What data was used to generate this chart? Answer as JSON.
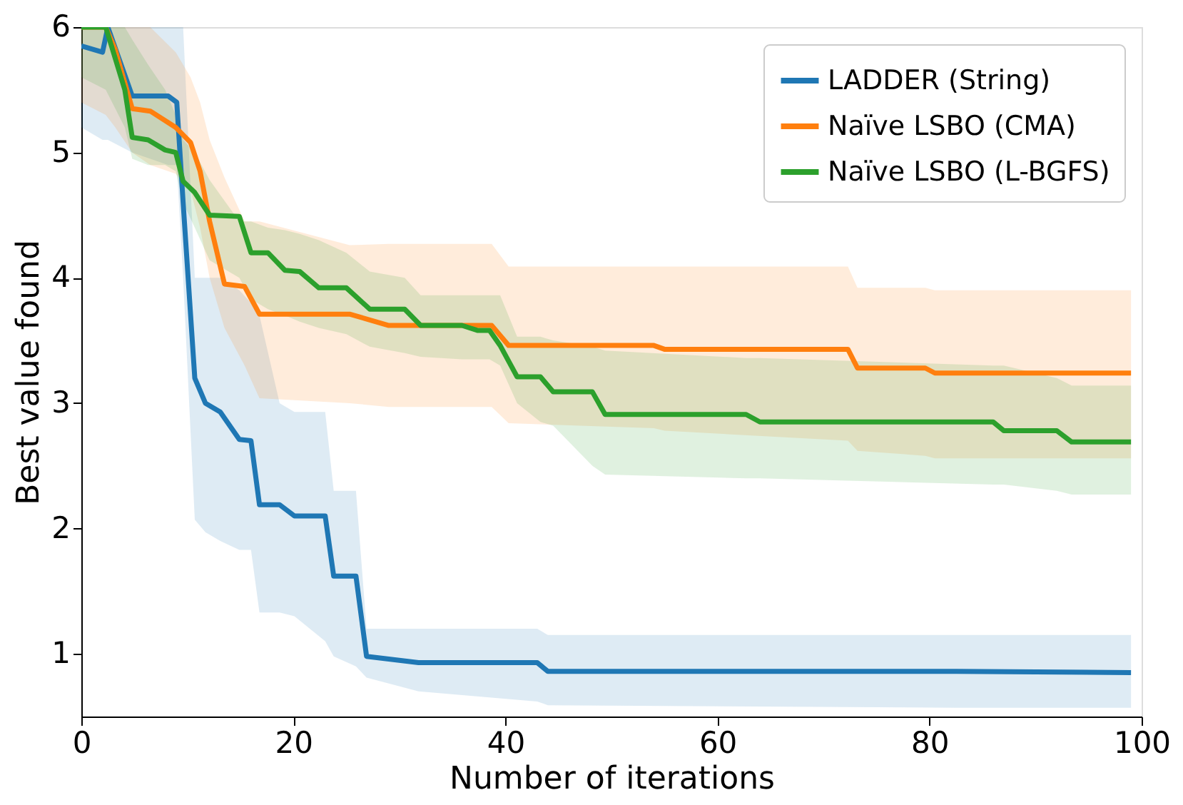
{
  "chart_data": {
    "type": "line",
    "xlabel": "Number of iterations",
    "ylabel": "Best value found",
    "xlim": [
      0,
      100
    ],
    "ylim": [
      0.5,
      6
    ],
    "xticks": [
      0,
      20,
      40,
      60,
      80,
      100
    ],
    "yticks": [
      1,
      2,
      3,
      4,
      5,
      6
    ],
    "grid": false,
    "legend": "top right",
    "marker": "none",
    "line_style": "solid",
    "series": [
      {
        "name": "LADDER (String)",
        "color": "#1f77b4",
        "x": [
          0,
          2,
          2.5,
          4.8,
          8.2,
          9,
          9.6,
          10.7,
          11.7,
          13.1,
          14.9,
          16,
          16.8,
          18.7,
          20.1,
          23,
          23.8,
          25.9,
          26.9,
          31.8,
          43,
          44,
          82.5,
          99
        ],
        "values": [
          5.85,
          5.8,
          6.0,
          5.45,
          5.45,
          5.4,
          4.6,
          3.2,
          3.0,
          2.93,
          2.71,
          2.7,
          2.19,
          2.19,
          2.1,
          2.1,
          1.62,
          1.62,
          0.98,
          0.93,
          0.93,
          0.86,
          0.86,
          0.85
        ],
        "upper": [
          6,
          6,
          6,
          6,
          6,
          6,
          6,
          4.0,
          4.0,
          4.0,
          3.9,
          3.8,
          3.7,
          3.0,
          2.93,
          2.93,
          2.3,
          2.3,
          1.2,
          1.2,
          1.2,
          1.15,
          1.15,
          1.15
        ],
        "lower": [
          5.2,
          5.1,
          5.1,
          5.0,
          4.9,
          4.9,
          4.0,
          2.07,
          1.97,
          1.9,
          1.83,
          1.83,
          1.33,
          1.33,
          1.3,
          1.1,
          0.98,
          0.9,
          0.81,
          0.7,
          0.62,
          0.59,
          0.57,
          0.57
        ]
      },
      {
        "name": "Naïve LSBO (CMA)",
        "color": "#ff7f0e",
        "x": [
          0,
          2.3,
          3.2,
          4.8,
          6.5,
          8.9,
          10.3,
          11.2,
          12.1,
          13.5,
          15.4,
          16.8,
          25.3,
          29,
          38.7,
          40.3,
          54,
          55,
          72.3,
          73.2,
          79.6,
          80.5,
          99
        ],
        "values": [
          6.0,
          6.0,
          5.82,
          5.35,
          5.33,
          5.2,
          5.08,
          4.85,
          4.45,
          3.95,
          3.93,
          3.71,
          3.71,
          3.62,
          3.62,
          3.46,
          3.46,
          3.43,
          3.43,
          3.28,
          3.28,
          3.24,
          3.24
        ],
        "upper": [
          6,
          6,
          6,
          6,
          6,
          5.8,
          5.6,
          5.4,
          5.1,
          4.8,
          4.45,
          4.45,
          4.26,
          4.27,
          4.27,
          4.09,
          4.09,
          4.09,
          4.09,
          3.92,
          3.92,
          3.9,
          3.9
        ],
        "lower": [
          5.4,
          5.3,
          5.2,
          5.0,
          4.9,
          4.83,
          4.7,
          4.4,
          4.0,
          3.6,
          3.3,
          3.04,
          3.0,
          2.97,
          2.97,
          2.84,
          2.8,
          2.78,
          2.7,
          2.62,
          2.58,
          2.56,
          2.56
        ]
      },
      {
        "name": "Naïve LSBO (L-BGFS)",
        "color": "#2ca02c",
        "x": [
          0,
          2.3,
          4.1,
          4.8,
          6.3,
          7.9,
          8.9,
          9.6,
          10.7,
          12.1,
          14.9,
          16,
          17.6,
          19.2,
          20.6,
          22.4,
          25,
          27.2,
          30.5,
          32,
          35.9,
          37.4,
          38.5,
          39.5,
          41.1,
          43.3,
          44.5,
          48.2,
          49.4,
          62.7,
          64,
          86,
          87,
          92,
          93.4,
          99
        ],
        "values": [
          6,
          6,
          5.5,
          5.12,
          5.1,
          5.02,
          5.0,
          4.77,
          4.68,
          4.5,
          4.49,
          4.2,
          4.2,
          4.06,
          4.05,
          3.92,
          3.92,
          3.75,
          3.75,
          3.62,
          3.62,
          3.58,
          3.58,
          3.46,
          3.21,
          3.21,
          3.09,
          3.09,
          2.91,
          2.91,
          2.85,
          2.85,
          2.78,
          2.78,
          2.69,
          2.69
        ],
        "upper": [
          6,
          6,
          6,
          5.9,
          5.7,
          5.5,
          5.3,
          5.1,
          5.0,
          4.78,
          4.45,
          4.45,
          4.4,
          4.38,
          4.35,
          4.3,
          4.2,
          4.05,
          4.0,
          3.86,
          3.86,
          3.86,
          3.86,
          3.86,
          3.53,
          3.53,
          3.5,
          3.45,
          3.42,
          3.36,
          3.36,
          3.3,
          3.3,
          3.2,
          3.14,
          3.14
        ],
        "lower": [
          5.6,
          5.5,
          5.2,
          4.95,
          4.9,
          4.9,
          4.85,
          4.6,
          4.4,
          4.14,
          4.0,
          3.83,
          3.75,
          3.7,
          3.65,
          3.6,
          3.55,
          3.45,
          3.4,
          3.37,
          3.35,
          3.35,
          3.35,
          3.3,
          3.0,
          2.85,
          2.82,
          2.5,
          2.43,
          2.4,
          2.4,
          2.35,
          2.35,
          2.3,
          2.27,
          2.27
        ]
      }
    ]
  }
}
